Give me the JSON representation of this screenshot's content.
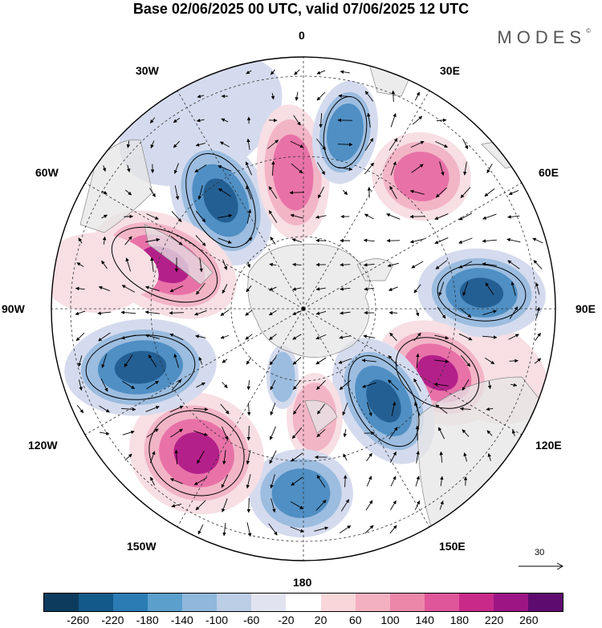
{
  "title": "Base 02/06/2025 00 UTC, valid 07/06/2025 12 UTC",
  "brand": "MODES",
  "brand_mark": "©",
  "longitude_labels": {
    "n0": "0",
    "n30e": "30E",
    "n60e": "60E",
    "n90e": "90E",
    "n120e": "120E",
    "n150e": "150E",
    "n180": "180",
    "n150w": "150W",
    "n120w": "120W",
    "n90w": "90W",
    "n60w": "60W",
    "n30w": "30W"
  },
  "reference_vector": "30",
  "colorbar": {
    "colors": [
      "#0d3b5e",
      "#13598a",
      "#2b7cb5",
      "#5b9fcd",
      "#8fb8dc",
      "#bccde6",
      "#e2e3f0",
      "#ffffff",
      "#f8d6da",
      "#f3b0c0",
      "#ec87aa",
      "#e0569a",
      "#c92a8a",
      "#9c1584",
      "#5e0b70"
    ],
    "ticks": [
      "-260",
      "-220",
      "-180",
      "-140",
      "-100",
      "-60",
      "-20",
      "20",
      "60",
      "100",
      "140",
      "180",
      "220",
      "260"
    ]
  },
  "anomaly_colors": {
    "neg_strong": "#245f93",
    "neg_mid": "#4f8fc4",
    "neg_weak": "#9cbde0",
    "neg_faint": "#d5dbee",
    "pos_faint": "#f7dfe4",
    "pos_weak": "#f2b5c6",
    "pos_mid": "#e872a8",
    "pos_strong": "#b4208a",
    "land": "#e6e6e6"
  }
}
